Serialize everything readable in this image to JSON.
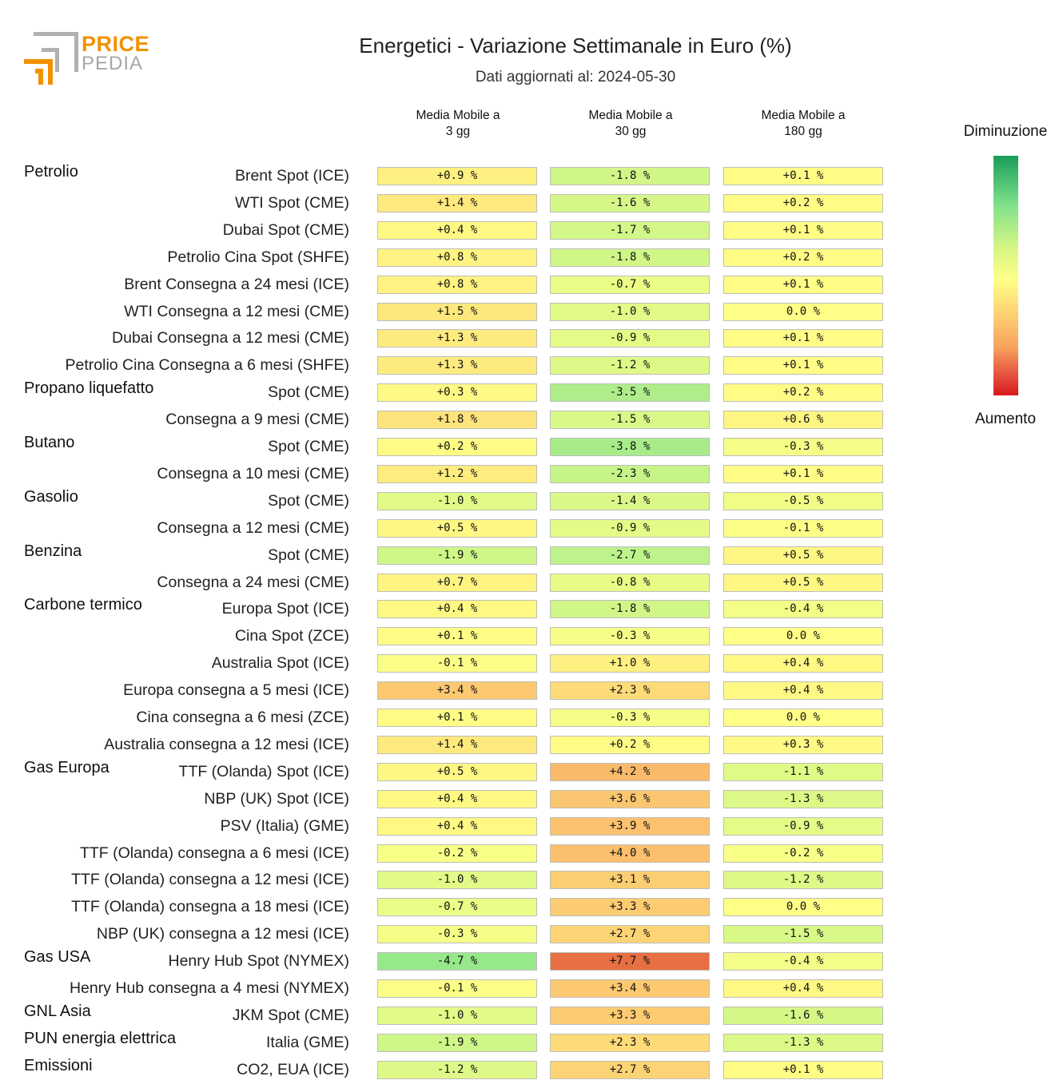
{
  "header": {
    "logo_line1": "PRICE",
    "logo_line2": "PEDIA",
    "title": "Energetici - Variazione Settimanale in Euro (%)",
    "subtitle": "Dati aggiornati al: 2024-05-30"
  },
  "columns": [
    {
      "line1": "Media Mobile a",
      "line2": "3 gg"
    },
    {
      "line1": "Media Mobile a",
      "line2": "30 gg"
    },
    {
      "line1": "Media Mobile a",
      "line2": "180 gg"
    }
  ],
  "legend": {
    "top_label": "Diminuzione",
    "bottom_label": "Aumento",
    "colors": [
      "#1a9c5a",
      "#7de08b",
      "#d5f585",
      "#ffff87",
      "#fdd474",
      "#f8a25e",
      "#e54e3c",
      "#d7191c"
    ]
  },
  "chart_data": {
    "type": "heatmap",
    "title": "Energetici - Variazione Settimanale in Euro (%)",
    "subtitle": "Dati aggiornati al: 2024-05-30",
    "unit": "%",
    "columns": [
      "Media Mobile a 3 gg",
      "Media Mobile a 30 gg",
      "Media Mobile a 180 gg"
    ],
    "groups": [
      "Petrolio",
      "Propano liquefatto",
      "Butano",
      "Gasolio",
      "Benzina",
      "Carbone termico",
      "Gas Europa",
      "Gas USA",
      "GNL Asia",
      "PUN energia elettrica",
      "Emissioni"
    ],
    "rows": [
      {
        "group": "Petrolio",
        "label": "Brent Spot (ICE)",
        "values": [
          "+0.9",
          "-1.8",
          "+0.1"
        ]
      },
      {
        "group": "",
        "label": "WTI Spot (CME)",
        "values": [
          "+1.4",
          "-1.6",
          "+0.2"
        ]
      },
      {
        "group": "",
        "label": "Dubai Spot (CME)",
        "values": [
          "+0.4",
          "-1.7",
          "+0.1"
        ]
      },
      {
        "group": "",
        "label": "Petrolio Cina Spot (SHFE)",
        "values": [
          "+0.8",
          "-1.8",
          "+0.2"
        ]
      },
      {
        "group": "",
        "label": "Brent Consegna a 24 mesi (ICE)",
        "values": [
          "+0.8",
          "-0.7",
          "+0.1"
        ]
      },
      {
        "group": "",
        "label": "WTI Consegna a 12 mesi (CME)",
        "values": [
          "+1.5",
          "-1.0",
          "0.0"
        ]
      },
      {
        "group": "",
        "label": "Dubai Consegna a 12 mesi (CME)",
        "values": [
          "+1.3",
          "-0.9",
          "+0.1"
        ]
      },
      {
        "group": "",
        "label": "Petrolio Cina Consegna a 6 mesi (SHFE)",
        "values": [
          "+1.3",
          "-1.2",
          "+0.1"
        ]
      },
      {
        "group": "Propano liquefatto",
        "label": "Spot (CME)",
        "values": [
          "+0.3",
          "-3.5",
          "+0.2"
        ]
      },
      {
        "group": "",
        "label": "Consegna a 9 mesi (CME)",
        "values": [
          "+1.8",
          "-1.5",
          "+0.6"
        ]
      },
      {
        "group": "Butano",
        "label": "Spot (CME)",
        "values": [
          "+0.2",
          "-3.8",
          "-0.3"
        ]
      },
      {
        "group": "",
        "label": "Consegna a 10 mesi (CME)",
        "values": [
          "+1.2",
          "-2.3",
          "+0.1"
        ]
      },
      {
        "group": "Gasolio",
        "label": "Spot (CME)",
        "values": [
          "-1.0",
          "-1.4",
          "-0.5"
        ]
      },
      {
        "group": "",
        "label": "Consegna a 12 mesi (CME)",
        "values": [
          "+0.5",
          "-0.9",
          "-0.1"
        ]
      },
      {
        "group": "Benzina",
        "label": "Spot (CME)",
        "values": [
          "-1.9",
          "-2.7",
          "+0.5"
        ]
      },
      {
        "group": "",
        "label": "Consegna a 24 mesi (CME)",
        "values": [
          "+0.7",
          "-0.8",
          "+0.5"
        ]
      },
      {
        "group": "Carbone termico",
        "label": "Europa Spot (ICE)",
        "values": [
          "+0.4",
          "-1.8",
          "-0.4"
        ]
      },
      {
        "group": "",
        "label": "Cina Spot (ZCE)",
        "values": [
          "+0.1",
          "-0.3",
          "0.0"
        ]
      },
      {
        "group": "",
        "label": "Australia Spot (ICE)",
        "values": [
          "-0.1",
          "+1.0",
          "+0.4"
        ]
      },
      {
        "group": "",
        "label": "Europa consegna a 5 mesi (ICE)",
        "values": [
          "+3.4",
          "+2.3",
          "+0.4"
        ]
      },
      {
        "group": "",
        "label": "Cina consegna a 6 mesi (ZCE)",
        "values": [
          "+0.1",
          "-0.3",
          "0.0"
        ]
      },
      {
        "group": "",
        "label": "Australia consegna a 12 mesi (ICE)",
        "values": [
          "+1.4",
          "+0.2",
          "+0.3"
        ]
      },
      {
        "group": "Gas Europa",
        "label": "TTF (Olanda) Spot (ICE)",
        "values": [
          "+0.5",
          "+4.2",
          "-1.1"
        ]
      },
      {
        "group": "",
        "label": "NBP (UK) Spot (ICE)",
        "values": [
          "+0.4",
          "+3.6",
          "-1.3"
        ]
      },
      {
        "group": "",
        "label": "PSV (Italia) (GME)",
        "values": [
          "+0.4",
          "+3.9",
          "-0.9"
        ]
      },
      {
        "group": "",
        "label": "TTF (Olanda) consegna a 6 mesi (ICE)",
        "values": [
          "-0.2",
          "+4.0",
          "-0.2"
        ]
      },
      {
        "group": "",
        "label": "TTF (Olanda) consegna a 12 mesi (ICE)",
        "values": [
          "-1.0",
          "+3.1",
          "-1.2"
        ]
      },
      {
        "group": "",
        "label": "TTF (Olanda) consegna a 18 mesi (ICE)",
        "values": [
          "-0.7",
          "+3.3",
          "0.0"
        ]
      },
      {
        "group": "",
        "label": "NBP (UK) consegna a 12 mesi (ICE)",
        "values": [
          "-0.3",
          "+2.7",
          "-1.5"
        ]
      },
      {
        "group": "Gas USA",
        "label": "Henry Hub Spot (NYMEX)",
        "values": [
          "-4.7",
          "+7.7",
          "-0.4"
        ]
      },
      {
        "group": "",
        "label": "Henry Hub consegna a 4 mesi (NYMEX)",
        "values": [
          "-0.1",
          "+3.4",
          "+0.4"
        ]
      },
      {
        "group": "GNL Asia",
        "label": "JKM Spot (CME)",
        "values": [
          "-1.0",
          "+3.3",
          "-1.6"
        ]
      },
      {
        "group": "PUN energia elettrica",
        "label": "Italia (GME)",
        "values": [
          "-1.9",
          "+2.3",
          "-1.3"
        ]
      },
      {
        "group": "Emissioni",
        "label": "CO2, EUA (ICE)",
        "values": [
          "-1.2",
          "+2.7",
          "+0.1"
        ]
      }
    ]
  }
}
